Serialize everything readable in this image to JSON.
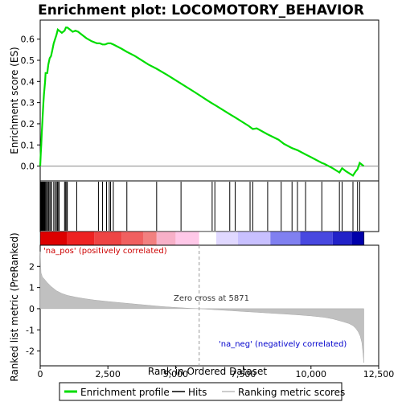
{
  "chart_data": {
    "type": "line",
    "title": "Enrichment plot: LOCOMOTORY_BEHAVIOR",
    "panels": {
      "enrichment": {
        "ylabel": "Enrichment score (ES)",
        "ylim": [
          -0.07,
          0.69
        ],
        "yticks": [
          "0.0",
          "0.1",
          "0.2",
          "0.3",
          "0.4",
          "0.5",
          "0.6"
        ],
        "series": [
          {
            "name": "Enrichment profile",
            "color": "#00dd00",
            "x": [
              0,
              20,
              40,
              60,
              80,
              100,
              120,
              140,
              160,
              180,
              200,
              230,
              260,
              300,
              350,
              400,
              450,
              500,
              550,
              600,
              650,
              700,
              800,
              900,
              950,
              1000,
              1100,
              1200,
              1300,
              1400,
              1500,
              1700,
              1900,
              2100,
              2200,
              2300,
              2400,
              2500,
              2600,
              2700,
              3000,
              3200,
              3500,
              4000,
              4300,
              4700,
              5200,
              5700,
              6300,
              6500,
              7000,
              7200,
              7700,
              7850,
              8000,
              8400,
              8800,
              9000,
              9300,
              9500,
              9800,
              10000,
              10400,
              10500,
              10800,
              11050,
              11150,
              11300,
              11550,
              11650,
              11720,
              11800,
              11950
            ],
            "y": [
              0.0,
              0.06,
              0.1,
              0.16,
              0.21,
              0.26,
              0.3,
              0.34,
              0.37,
              0.4,
              0.44,
              0.44,
              0.44,
              0.48,
              0.51,
              0.52,
              0.55,
              0.58,
              0.6,
              0.62,
              0.645,
              0.64,
              0.63,
              0.64,
              0.655,
              0.655,
              0.645,
              0.635,
              0.64,
              0.635,
              0.625,
              0.605,
              0.59,
              0.58,
              0.58,
              0.575,
              0.575,
              0.58,
              0.58,
              0.575,
              0.555,
              0.54,
              0.52,
              0.48,
              0.46,
              0.43,
              0.39,
              0.35,
              0.3,
              0.285,
              0.245,
              0.23,
              0.19,
              0.175,
              0.178,
              0.15,
              0.125,
              0.105,
              0.085,
              0.075,
              0.055,
              0.042,
              0.015,
              0.01,
              -0.01,
              -0.03,
              -0.01,
              -0.025,
              -0.045,
              -0.025,
              -0.015,
              0.015,
              0.0
            ]
          }
        ]
      },
      "hits": {
        "series_name": "Hits",
        "positions": [
          20,
          40,
          55,
          70,
          85,
          100,
          115,
          130,
          150,
          170,
          190,
          230,
          260,
          300,
          330,
          380,
          420,
          500,
          550,
          600,
          640,
          680,
          700,
          900,
          940,
          980,
          1000,
          1350,
          2150,
          2300,
          2450,
          2550,
          2600,
          2700,
          3200,
          4300,
          5200,
          6350,
          6450,
          7000,
          7200,
          7750,
          7850,
          8400,
          8900,
          9300,
          9500,
          9800,
          10400,
          11050,
          11150,
          11550,
          11720,
          11800
        ],
        "ticks": [],
        "heatmap_colors": [
          "#dd0000",
          "#ee2222",
          "#ee4444",
          "#f06060",
          "#f28080",
          "#f7b0c8",
          "#ffc8e8",
          "#ffffff",
          "#e0d8ff",
          "#c8c0ff",
          "#8080f0",
          "#4848e0",
          "#2222c8",
          "#0000aa"
        ],
        "heatmap_stops": [
          0,
          1000,
          2000,
          3000,
          3800,
          4300,
          5000,
          5871,
          6500,
          7300,
          8500,
          9600,
          10800,
          11500,
          11960
        ]
      },
      "ranked": {
        "series_name": "Ranking metric scores",
        "ylabel": "Ranked list metric (PreRanked)",
        "xlabel": "Rank in Ordered Dataset",
        "ylim": [
          -2.7,
          3.0
        ],
        "yticks": [
          "-2",
          "-1",
          "0",
          "1",
          "2"
        ],
        "xlim": [
          0,
          12500
        ],
        "xticks": [
          "0",
          "2,500",
          "5,000",
          "7,500",
          "10,000",
          "12,500"
        ],
        "x": [
          0,
          30,
          80,
          150,
          250,
          400,
          600,
          800,
          1000,
          1300,
          1600,
          2000,
          2500,
          3000,
          3500,
          4000,
          4500,
          5000,
          5500,
          5871,
          6500,
          7000,
          7500,
          8000,
          8500,
          9000,
          9500,
          10000,
          10500,
          10800,
          11000,
          11200,
          11400,
          11550,
          11650,
          11750,
          11820,
          11880,
          11920,
          11950
        ],
        "y": [
          2.7,
          1.7,
          1.5,
          1.4,
          1.25,
          1.05,
          0.85,
          0.72,
          0.63,
          0.55,
          0.48,
          0.41,
          0.34,
          0.28,
          0.22,
          0.16,
          0.1,
          0.06,
          0.02,
          0.0,
          -0.05,
          -0.09,
          -0.13,
          -0.17,
          -0.21,
          -0.25,
          -0.29,
          -0.34,
          -0.41,
          -0.48,
          -0.55,
          -0.62,
          -0.7,
          -0.8,
          -0.92,
          -1.1,
          -1.3,
          -1.6,
          -2.1,
          -2.55
        ],
        "pos_label": "'na_pos' (positively correlated)",
        "neg_label": "'na_neg' (negatively correlated)",
        "zero_cross_label": "Zero cross at 5871",
        "zero_cross": 5871
      }
    },
    "legend": {
      "placement": "bottom",
      "entries": [
        {
          "label": "Enrichment profile",
          "color": "#00dd00"
        },
        {
          "label": "Hits",
          "color": "#000000"
        },
        {
          "label": "Ranking metric scores",
          "color": "#bbbbbb"
        }
      ]
    }
  }
}
